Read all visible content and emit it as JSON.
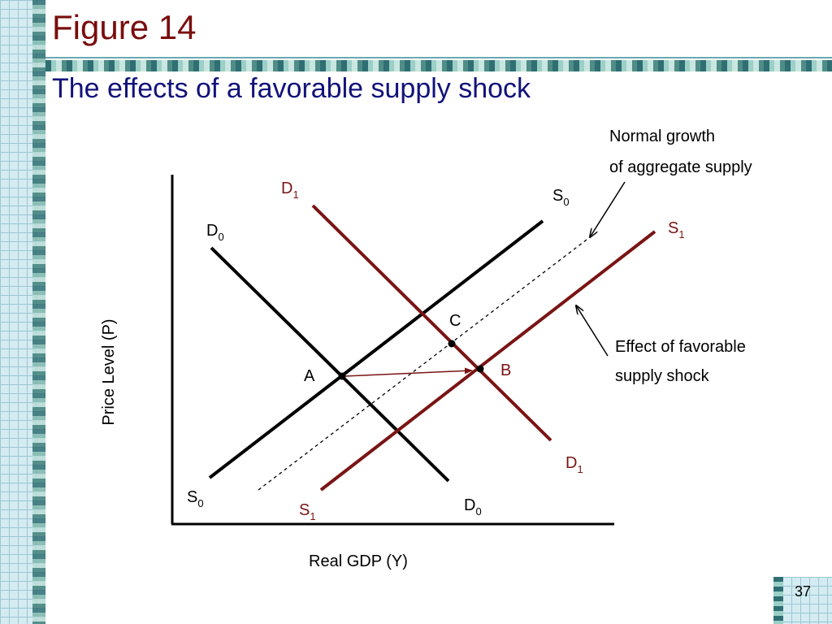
{
  "title": "Figure 14",
  "subtitle": "The effects of a favorable supply shock",
  "page_number": "37",
  "colors": {
    "title": "#7a0d0d",
    "subtitle": "#12127a",
    "curve_new": "#7a1414",
    "curve_old": "#000000"
  },
  "axes": {
    "ylabel": "Price Level (P)",
    "xlabel": "Real GDP (Y)"
  },
  "curves": {
    "d0": {
      "main": "D",
      "sub": "0"
    },
    "d1": {
      "main": "D",
      "sub": "1"
    },
    "s0": {
      "main": "S",
      "sub": "0"
    },
    "s1": {
      "main": "S",
      "sub": "1"
    },
    "growth_line": "Normal growth of aggregate supply"
  },
  "points": {
    "a": "A",
    "b": "B",
    "c": "C"
  },
  "annotations": {
    "normal_growth_line1": "Normal growth",
    "normal_growth_line2": "of aggregate supply",
    "shock_line1": "Effect of favorable",
    "shock_line2": "supply shock"
  }
}
